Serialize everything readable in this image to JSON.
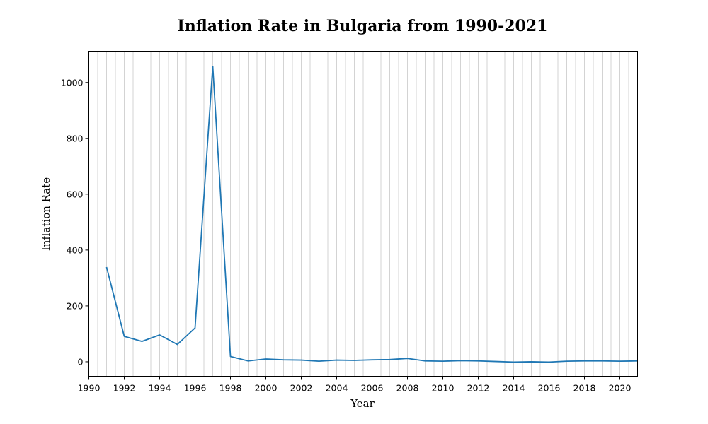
{
  "chart_data": {
    "type": "line",
    "title": "Inflation Rate in Bulgaria from 1990-2021",
    "xlabel": "Year",
    "ylabel": "Inflation Rate",
    "xlim": [
      1990,
      2021
    ],
    "ylim": [
      -52,
      1112
    ],
    "x_ticks": [
      1990,
      1992,
      1994,
      1996,
      1998,
      2000,
      2002,
      2004,
      2006,
      2008,
      2010,
      2012,
      2014,
      2016,
      2018,
      2020
    ],
    "y_ticks": [
      0,
      200,
      400,
      600,
      800,
      1000
    ],
    "grid": "vertical-every-half-year",
    "legend": "none",
    "line_color": "#1f77b4",
    "series": [
      {
        "x": [
          1991,
          1992,
          1993,
          1994,
          1995,
          1996,
          1997,
          1998,
          1999,
          2000,
          2001,
          2002,
          2003,
          2004,
          2005,
          2006,
          2007,
          2008,
          2009,
          2010,
          2011,
          2012,
          2013,
          2014,
          2015,
          2016,
          2017,
          2018,
          2019,
          2020,
          2021
        ],
        "values": [
          339,
          91,
          73,
          96,
          62,
          121,
          1058,
          19,
          3,
          10,
          7,
          6,
          2,
          6,
          5,
          7,
          8,
          12,
          3,
          2,
          4,
          3,
          1,
          -1,
          0,
          -1,
          2,
          3,
          3,
          2,
          3
        ]
      }
    ]
  }
}
